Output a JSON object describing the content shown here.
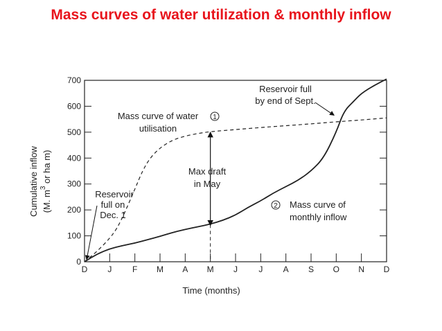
{
  "slide": {
    "title": "Mass curves of water utilization & monthly inflow"
  },
  "chart_data": {
    "type": "line",
    "title": "",
    "xlabel": "Time (months)",
    "ylabel_line1": "Cumulative inflow",
    "ylabel_line2_pre": "(M. m",
    "ylabel_sup": "3",
    "ylabel_line2_post": " or ha m)",
    "x_ticks": [
      "D",
      "J",
      "F",
      "M",
      "A",
      "M",
      "J",
      "J",
      "A",
      "S",
      "O",
      "N",
      "D"
    ],
    "y_ticks": [
      0,
      100,
      200,
      300,
      400,
      500,
      600,
      700
    ],
    "xlim": [
      0,
      12
    ],
    "ylim": [
      0,
      700
    ],
    "grid": false,
    "series": [
      {
        "name": "Mass curve of water utilisation",
        "marker": "1",
        "style": "dashed",
        "x": [
          0,
          0.5,
          1,
          1.3,
          1.6,
          2,
          2.3,
          2.6,
          3,
          3.5,
          4,
          4.5,
          5,
          6,
          7,
          8,
          9,
          10,
          11,
          12
        ],
        "y": [
          0,
          40,
          90,
          130,
          190,
          280,
          350,
          400,
          440,
          470,
          485,
          495,
          502,
          510,
          518,
          525,
          532,
          540,
          547,
          555
        ]
      },
      {
        "name": "Mass curve of monthly inflow",
        "marker": "2",
        "style": "solid",
        "x": [
          0,
          0.5,
          1,
          1.5,
          2,
          2.5,
          3,
          3.5,
          4,
          4.5,
          5,
          5.5,
          6,
          6.5,
          7,
          7.5,
          8,
          8.5,
          9,
          9.5,
          10,
          10.3,
          10.7,
          11,
          11.5,
          12
        ],
        "y": [
          0,
          30,
          50,
          62,
          72,
          85,
          98,
          113,
          125,
          135,
          145,
          160,
          180,
          210,
          235,
          265,
          290,
          315,
          350,
          400,
          500,
          580,
          620,
          650,
          680,
          705
        ]
      }
    ],
    "annotations": {
      "reservoir_full_sept": {
        "line1": "Reservoir full",
        "line2": "by end of Sept."
      },
      "utilisation_label": {
        "line1": "Mass curve of water",
        "line2": "utilisation",
        "marker": "1"
      },
      "max_draft": {
        "line1": "Max draft",
        "line2": "in May"
      },
      "reservoir_full_dec": {
        "line1": "Reservoir",
        "line2": "full on",
        "line3": "Dec. 1"
      },
      "inflow_label": {
        "line1": "Mass curve of",
        "line2": "monthly inflow",
        "marker": "2"
      }
    }
  }
}
